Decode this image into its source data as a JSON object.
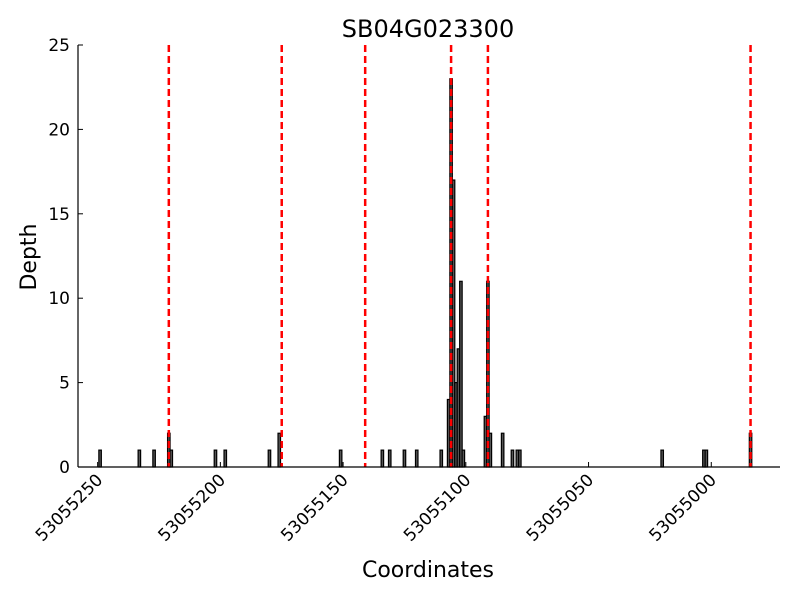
{
  "chart_data": {
    "type": "bar",
    "title": "SB04G023300",
    "xlabel": "Coordinates",
    "ylabel": "Depth",
    "x_reversed": true,
    "xlim": [
      53055258,
      53054972
    ],
    "ylim": [
      0,
      25
    ],
    "xticks": [
      53055250,
      53055200,
      53055150,
      53055100,
      53055050,
      53055000
    ],
    "xtick_labels": [
      "53055250",
      "53055200",
      "53055150",
      "53055100",
      "53055050",
      "53055000"
    ],
    "yticks": [
      0,
      5,
      10,
      15,
      20,
      25
    ],
    "ytick_labels": [
      "0",
      "5",
      "10",
      "15",
      "20",
      "25"
    ],
    "grid": false,
    "bars": [
      {
        "x": 53055249,
        "y": 1
      },
      {
        "x": 53055233,
        "y": 1
      },
      {
        "x": 53055227,
        "y": 1
      },
      {
        "x": 53055221,
        "y": 2
      },
      {
        "x": 53055220,
        "y": 1
      },
      {
        "x": 53055202,
        "y": 1
      },
      {
        "x": 53055198,
        "y": 1
      },
      {
        "x": 53055180,
        "y": 1
      },
      {
        "x": 53055176,
        "y": 2
      },
      {
        "x": 53055151,
        "y": 1
      },
      {
        "x": 53055134,
        "y": 1
      },
      {
        "x": 53055131,
        "y": 1
      },
      {
        "x": 53055125,
        "y": 1
      },
      {
        "x": 53055120,
        "y": 1
      },
      {
        "x": 53055110,
        "y": 1
      },
      {
        "x": 53055107,
        "y": 4
      },
      {
        "x": 53055106,
        "y": 23
      },
      {
        "x": 53055105,
        "y": 17
      },
      {
        "x": 53055104,
        "y": 5
      },
      {
        "x": 53055103,
        "y": 7
      },
      {
        "x": 53055102,
        "y": 11
      },
      {
        "x": 53055101,
        "y": 1
      },
      {
        "x": 53055092,
        "y": 3
      },
      {
        "x": 53055091,
        "y": 11
      },
      {
        "x": 53055090,
        "y": 2
      },
      {
        "x": 53055085,
        "y": 2
      },
      {
        "x": 53055081,
        "y": 1
      },
      {
        "x": 53055079,
        "y": 1
      },
      {
        "x": 53055078,
        "y": 1
      },
      {
        "x": 53055020,
        "y": 1
      },
      {
        "x": 53055003,
        "y": 1
      },
      {
        "x": 53055002,
        "y": 1
      },
      {
        "x": 53054984,
        "y": 2
      }
    ],
    "vlines": [
      53055221,
      53055175,
      53055141,
      53055106,
      53055091,
      53054984
    ],
    "vline_color": "#ff0000",
    "bar_fill": "#555555",
    "bar_edge": "#000000"
  }
}
